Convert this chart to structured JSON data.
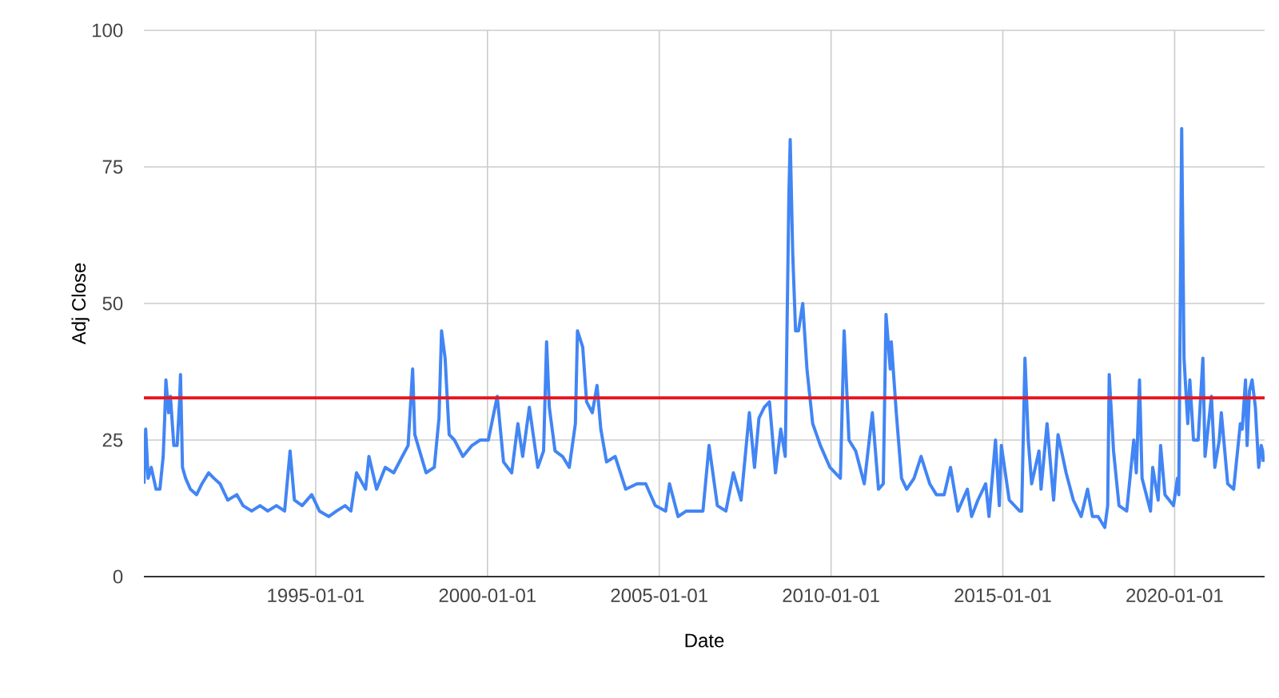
{
  "chart_data": {
    "type": "line",
    "xlabel": "Date",
    "ylabel": "Adj Close",
    "x": [
      "1990-01-02",
      "1990-01-20",
      "1990-02-15",
      "1990-03-20",
      "1990-05-10",
      "1990-06-20",
      "1990-07-25",
      "1990-08-10",
      "1990-08-23",
      "1990-09-20",
      "1990-10-10",
      "1990-11-15",
      "1990-12-20",
      "1991-01-15",
      "1991-01-25",
      "1991-02-15",
      "1991-03-20",
      "1991-05-10",
      "1991-07-15",
      "1991-09-10",
      "1991-11-20",
      "1992-01-15",
      "1992-03-20",
      "1992-06-10",
      "1992-09-15",
      "1992-11-20",
      "1993-02-20",
      "1993-05-20",
      "1993-08-10",
      "1993-11-10",
      "1994-02-05",
      "1994-04-04",
      "1994-05-20",
      "1994-08-10",
      "1994-11-20",
      "1995-02-10",
      "1995-05-20",
      "1995-08-10",
      "1995-11-10",
      "1996-01-10",
      "1996-03-10",
      "1996-06-15",
      "1996-07-20",
      "1996-10-10",
      "1997-01-10",
      "1997-04-10",
      "1997-07-10",
      "1997-09-10",
      "1997-10-28",
      "1997-11-20",
      "1998-01-10",
      "1998-03-20",
      "1998-06-15",
      "1998-08-04",
      "1998-08-31",
      "1998-10-08",
      "1998-11-20",
      "1999-01-15",
      "1999-04-15",
      "1999-07-20",
      "1999-10-15",
      "2000-01-10",
      "2000-04-14",
      "2000-06-20",
      "2000-09-15",
      "2000-11-20",
      "2001-01-10",
      "2001-03-22",
      "2001-06-20",
      "2001-08-20",
      "2001-09-21",
      "2001-10-20",
      "2001-12-20",
      "2002-03-10",
      "2002-05-20",
      "2002-07-24",
      "2002-08-15",
      "2002-10-10",
      "2002-11-20",
      "2003-01-20",
      "2003-03-11",
      "2003-04-20",
      "2003-06-20",
      "2003-09-20",
      "2004-01-10",
      "2004-05-10",
      "2004-08-10",
      "2004-11-20",
      "2005-03-10",
      "2005-04-20",
      "2005-07-20",
      "2005-10-15",
      "2006-01-10",
      "2006-04-10",
      "2006-06-14",
      "2006-09-10",
      "2006-12-10",
      "2007-02-27",
      "2007-05-20",
      "2007-08-16",
      "2007-10-10",
      "2007-11-26",
      "2008-01-22",
      "2008-03-17",
      "2008-05-20",
      "2008-07-15",
      "2008-09-01",
      "2008-10-10",
      "2008-10-24",
      "2008-11-20",
      "2008-12-20",
      "2009-01-20",
      "2009-03-06",
      "2009-04-20",
      "2009-06-20",
      "2009-09-10",
      "2009-12-20",
      "2010-04-10",
      "2010-05-20",
      "2010-07-10",
      "2010-09-20",
      "2010-12-20",
      "2011-03-16",
      "2011-05-20",
      "2011-07-10",
      "2011-08-08",
      "2011-09-22",
      "2011-10-03",
      "2011-11-25",
      "2012-01-20",
      "2012-03-15",
      "2012-06-01",
      "2012-08-15",
      "2012-11-15",
      "2013-01-25",
      "2013-04-18",
      "2013-06-24",
      "2013-09-10",
      "2013-12-20",
      "2014-02-03",
      "2014-04-11",
      "2014-07-03",
      "2014-08-07",
      "2014-10-15",
      "2014-11-25",
      "2014-12-16",
      "2015-03-10",
      "2015-06-29",
      "2015-07-20",
      "2015-08-24",
      "2015-09-28",
      "2015-11-03",
      "2016-01-20",
      "2016-02-11",
      "2016-04-15",
      "2016-06-24",
      "2016-08-10",
      "2016-11-04",
      "2017-01-20",
      "2017-04-13",
      "2017-06-20",
      "2017-08-11",
      "2017-10-10",
      "2017-12-20",
      "2018-01-20",
      "2018-02-05",
      "2018-03-23",
      "2018-05-20",
      "2018-08-10",
      "2018-10-24",
      "2018-11-20",
      "2018-12-24",
      "2019-01-20",
      "2019-04-20",
      "2019-05-13",
      "2019-07-10",
      "2019-08-05",
      "2019-09-20",
      "2019-12-20",
      "2020-01-31",
      "2020-02-14",
      "2020-03-16",
      "2020-04-10",
      "2020-05-20",
      "2020-06-11",
      "2020-07-20",
      "2020-09-08",
      "2020-10-28",
      "2020-11-20",
      "2021-01-27",
      "2021-03-04",
      "2021-04-20",
      "2021-05-12",
      "2021-07-19",
      "2021-09-20",
      "2021-11-30",
      "2021-12-20",
      "2022-01-24",
      "2022-02-10",
      "2022-03-07",
      "2022-04-04",
      "2022-05-09",
      "2022-06-13",
      "2022-07-10",
      "2022-07-25",
      "2022-08-01"
    ],
    "xlim": [
      "1990-01-01",
      "2022-08-15"
    ],
    "xticks": [
      "1995-01-01",
      "2000-01-01",
      "2005-01-01",
      "2010-01-01",
      "2015-01-01",
      "2020-01-01"
    ],
    "ylim": [
      0,
      100
    ],
    "yticks": [
      0,
      25,
      50,
      75,
      100
    ],
    "grid": true,
    "series": [
      {
        "color": "#4285f4",
        "values": [
          17,
          27,
          18,
          20,
          16,
          16,
          22,
          29,
          36,
          30,
          33,
          24,
          24,
          32,
          37,
          20,
          18,
          16,
          15,
          17,
          19,
          18,
          17,
          14,
          15,
          13,
          12,
          13,
          12,
          13,
          12,
          23,
          14,
          13,
          15,
          12,
          11,
          12,
          13,
          12,
          19,
          16,
          22,
          16,
          20,
          19,
          22,
          24,
          38,
          26,
          23,
          19,
          20,
          29,
          45,
          40,
          26,
          25,
          22,
          24,
          25,
          25,
          33,
          21,
          19,
          28,
          22,
          31,
          20,
          23,
          43,
          31,
          23,
          22,
          20,
          28,
          45,
          42,
          32,
          30,
          35,
          27,
          21,
          22,
          16,
          17,
          17,
          13,
          12,
          17,
          11,
          12,
          12,
          12,
          24,
          13,
          12,
          19,
          14,
          30,
          20,
          29,
          31,
          32,
          19,
          27,
          22,
          70,
          80,
          59,
          45,
          45,
          50,
          38,
          28,
          24,
          20,
          18,
          45,
          25,
          23,
          17,
          30,
          16,
          17,
          48,
          38,
          43,
          30,
          18,
          16,
          18,
          22,
          17,
          15,
          15,
          20,
          12,
          16,
          11,
          14,
          17,
          11,
          25,
          13,
          24,
          14,
          12,
          12,
          40,
          25,
          17,
          23,
          16,
          28,
          14,
          26,
          19,
          14,
          11,
          16,
          11,
          11,
          9,
          13,
          37,
          23,
          13,
          12,
          25,
          19,
          36,
          18,
          12,
          20,
          14,
          24,
          15,
          13,
          18,
          15,
          82,
          40,
          28,
          36,
          25,
          25,
          40,
          22,
          33,
          20,
          25,
          30,
          17,
          16,
          28,
          27,
          36,
          24,
          34,
          36,
          31,
          20,
          24,
          23,
          21
        ]
      }
    ],
    "ref_lines": [
      {
        "axis": "y",
        "value": 32.7,
        "color": "#e8141f"
      }
    ]
  }
}
